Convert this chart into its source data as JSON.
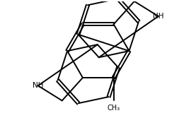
{
  "bg": "#ffffff",
  "lc": "#000000",
  "lw": 1.4,
  "dlw": 1.4,
  "dbo": 0.055,
  "fs": 7.5,
  "xlim": [
    -3.6,
    3.6
  ],
  "ylim": [
    -2.0,
    2.0
  ]
}
